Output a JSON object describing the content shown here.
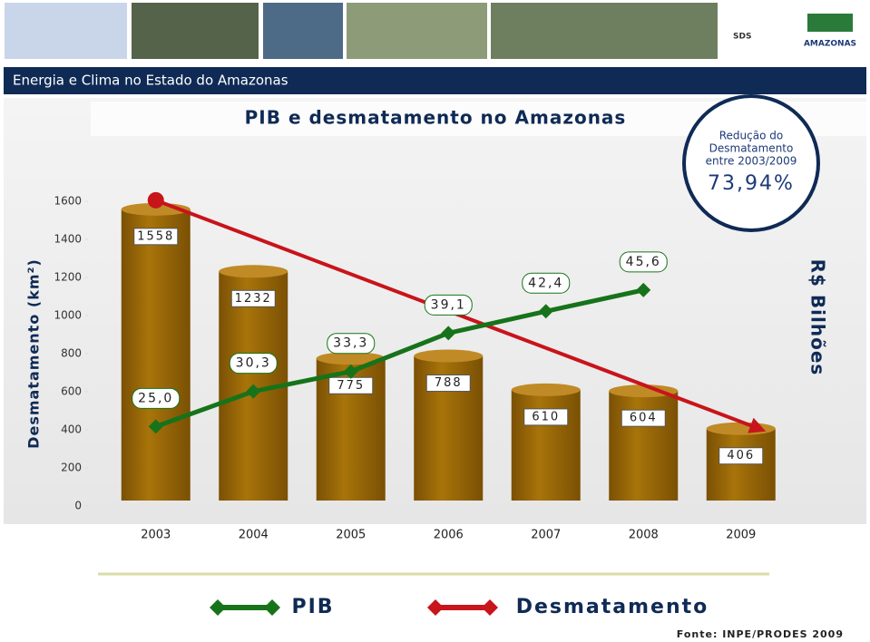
{
  "header": {
    "title": "Energia e Clima no Estado do Amazonas",
    "logo_sds": "SDS",
    "logo_state": "AMAZONAS"
  },
  "chart_data": {
    "type": "bar",
    "title": "PIB e desmatamento no Amazonas",
    "annotation": {
      "lines": [
        "Redução do",
        "Desmatamento",
        "entre 2003/2009"
      ],
      "value": "73,94%"
    },
    "y_label": "Desmatamento (km²)",
    "y2_label": "R$ Bilhões",
    "categories": [
      "2003",
      "2004",
      "2005",
      "2006",
      "2007",
      "2008",
      "2009"
    ],
    "ylim": [
      0,
      1600
    ],
    "yticks": [
      0,
      200,
      400,
      600,
      800,
      1000,
      1200,
      1400,
      1600
    ],
    "y2lim": [
      13,
      59
    ],
    "bar_color": "#9c6a06",
    "series": [
      {
        "name": "PIB",
        "color": "#17731a",
        "axis": "y2",
        "values": [
          25,
          30.3,
          33.3,
          39.1,
          42.4,
          45.6,
          null
        ],
        "value_labels": [
          "25,0",
          "30,3",
          "33,3",
          "39,1",
          "42,4",
          "45,6",
          null
        ]
      },
      {
        "name": "Desmatamento",
        "color": "#c8141b",
        "values": [
          1558,
          1232,
          775,
          788,
          610,
          604,
          406
        ]
      }
    ],
    "source": "Fonte: INPE/PRODES 2009"
  }
}
